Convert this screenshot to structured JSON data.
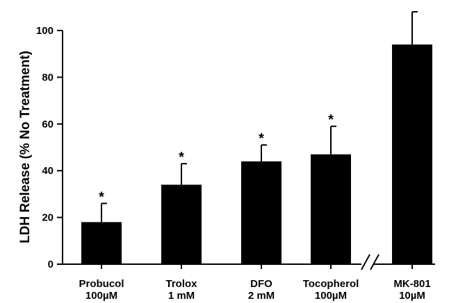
{
  "chart_data": {
    "type": "bar",
    "categories": [
      [
        "Probucol",
        "100µM"
      ],
      [
        "Trolox",
        "1 mM"
      ],
      [
        "DFO",
        "2 mM"
      ],
      [
        "Tocopherol",
        "100µM"
      ],
      [
        "MK-801",
        "10µM"
      ]
    ],
    "values": [
      18,
      34,
      44,
      47,
      94
    ],
    "error_plus": [
      8,
      9,
      7,
      12,
      14
    ],
    "annotations": [
      "*",
      "*",
      "*",
      "*",
      ""
    ],
    "ylabel": "LDH Release (% No Treatment)",
    "xlabel": "",
    "title": "",
    "ylim": [
      0,
      100
    ],
    "yticks": [
      0,
      20,
      40,
      60,
      80,
      100
    ],
    "axis_break_between": [
      3,
      4
    ],
    "grid": false,
    "bar_color": "#000000"
  }
}
